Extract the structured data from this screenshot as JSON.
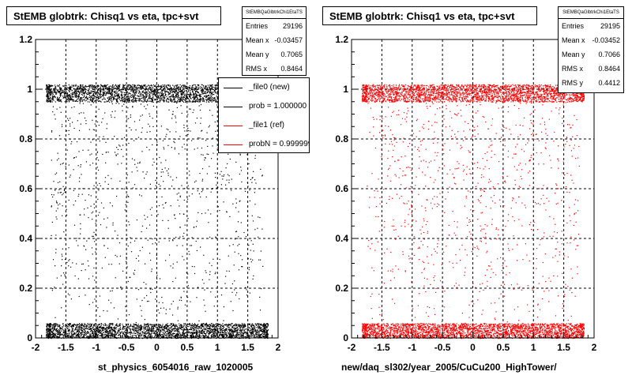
{
  "chart_data": [
    {
      "type": "scatter",
      "title": "StEMB globtrk: Chisq1 vs eta, tpc+svt",
      "xlabel": "st_physics_6054016_raw_1020005",
      "ylabel": "",
      "xlim": [
        -2,
        2
      ],
      "ylim": [
        0,
        1.2
      ],
      "xticks": [
        "-2",
        "-1.5",
        "-1",
        "-0.5",
        "0",
        "0.5",
        "1",
        "1.5",
        "2"
      ],
      "yticks": [
        "0",
        "0.2",
        "0.4",
        "0.6",
        "0.8",
        "1",
        "1.2"
      ],
      "grid": true,
      "marker_color": "#000000",
      "dense_bands": [
        {
          "y_range": [
            0.95,
            1.02
          ],
          "x_range": [
            -1.75,
            1.75
          ]
        },
        {
          "y_range": [
            0.0,
            0.06
          ],
          "x_range": [
            -1.75,
            1.75
          ]
        }
      ],
      "stats": {
        "header": "StEMBQaGlbtrkChi1EtaTS",
        "rows": [
          {
            "label": "Entries",
            "value": "29196"
          },
          {
            "label": "Mean x",
            "value": "-0.03457"
          },
          {
            "label": "Mean y",
            "value": "0.7065"
          },
          {
            "label": "RMS x",
            "value": "0.8464"
          }
        ]
      },
      "legend": {
        "position": "top-right",
        "entries": [
          {
            "label": "_file0 (new)",
            "color": "#000000"
          },
          {
            "label": "prob = 1.000000",
            "color": "#000000"
          },
          {
            "label": "_file1 (ref)",
            "color": "#ff0000"
          },
          {
            "label": "probN = 0.999999",
            "color": "#ff0000"
          }
        ]
      }
    },
    {
      "type": "scatter",
      "title": "StEMB globtrk: Chisq1 vs eta, tpc+svt",
      "xlabel": "new/daq_sl302/year_2005/CuCu200_HighTower/",
      "ylabel": "",
      "xlim": [
        -2,
        2
      ],
      "ylim": [
        0,
        1.2
      ],
      "xticks": [
        "-2",
        "-1.5",
        "-1",
        "-0.5",
        "0",
        "0.5",
        "1",
        "1.5",
        "2"
      ],
      "yticks": [
        "0",
        "0.2",
        "0.4",
        "0.6",
        "0.8",
        "1",
        "1.2"
      ],
      "grid": true,
      "marker_color": "#ff0000",
      "dense_bands": [
        {
          "y_range": [
            0.95,
            1.02
          ],
          "x_range": [
            -1.75,
            1.75
          ]
        },
        {
          "y_range": [
            0.0,
            0.06
          ],
          "x_range": [
            -1.75,
            1.75
          ]
        }
      ],
      "stats": {
        "header": "StEMBQaGlbtrkChi1EtaTS",
        "rows": [
          {
            "label": "Entries",
            "value": "29195"
          },
          {
            "label": "Mean x",
            "value": "-0.03452"
          },
          {
            "label": "Mean y",
            "value": "0.7066"
          },
          {
            "label": "RMS x",
            "value": "0.8464"
          },
          {
            "label": "RMS y",
            "value": "0.4412"
          }
        ]
      }
    }
  ]
}
